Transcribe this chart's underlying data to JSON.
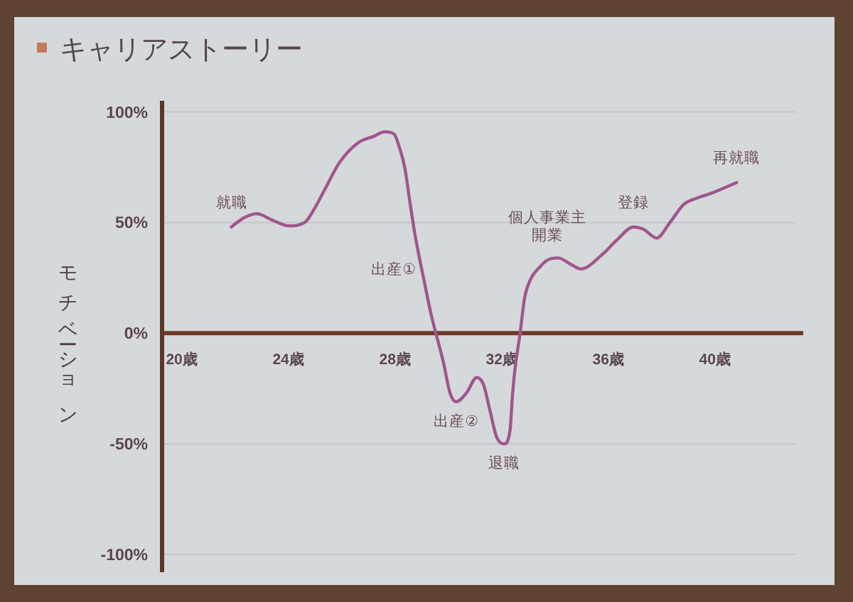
{
  "chart_data": {
    "type": "line",
    "title": "キャリアストーリー",
    "ylabel": "モチベーション",
    "xlim": [
      19.25,
      43.3
    ],
    "xticks": [
      {
        "value": 20,
        "label": "20歳"
      },
      {
        "value": 24,
        "label": "24歳"
      },
      {
        "value": 28,
        "label": "28歳"
      },
      {
        "value": 32,
        "label": "32歳"
      },
      {
        "value": 36,
        "label": "36歳"
      },
      {
        "value": 40,
        "label": "40歳"
      }
    ],
    "ylim": [
      -108,
      105
    ],
    "yticks": [
      {
        "value": -100,
        "label": "-100%"
      },
      {
        "value": -50,
        "label": "-50%"
      },
      {
        "value": 0,
        "label": "0%"
      },
      {
        "value": 50,
        "label": "50%"
      },
      {
        "value": 100,
        "label": "100%"
      }
    ],
    "grid": "y",
    "color": "#a0568c",
    "x": [
      21.85,
      22.3,
      22.8,
      23.4,
      24.0,
      24.6,
      25.0,
      25.4,
      25.9,
      26.6,
      27.2,
      27.6,
      27.95,
      28.15,
      28.35,
      28.55,
      28.73,
      29.09,
      29.35,
      29.52,
      29.8,
      30.05,
      30.28,
      30.67,
      31.05,
      31.3,
      31.55,
      31.8,
      32.08,
      32.3,
      32.4,
      32.5,
      32.68,
      32.85,
      33.1,
      33.35,
      33.7,
      34.1,
      34.6,
      34.95,
      35.8,
      36.3,
      36.93,
      37.3,
      37.8,
      38.3,
      38.8,
      39.3,
      39.8,
      40.8
    ],
    "values": [
      48,
      52,
      54,
      51,
      48.5,
      50,
      57,
      66,
      77,
      86,
      89,
      91,
      90,
      84,
      75,
      59,
      45,
      23,
      8,
      0,
      -13,
      -27,
      -31,
      -27,
      -20,
      -23,
      -35,
      -47,
      -50,
      -44,
      -27,
      -15,
      0,
      16,
      25,
      29,
      33,
      34,
      31,
      29,
      36,
      42,
      48,
      47,
      43,
      50,
      58,
      61,
      63,
      68
    ],
    "annotations": [
      {
        "text": "就職",
        "x": 21.85,
        "y": 48
      },
      {
        "text": "出産①",
        "x": 29.09,
        "y": 23
      },
      {
        "text": "出産②",
        "x": 30.28,
        "y": -31
      },
      {
        "text": "退職",
        "x": 32.08,
        "y": -50
      },
      {
        "text": "個人事業主開業",
        "x": 33.7,
        "y": 33
      },
      {
        "text": "登録",
        "x": 36.93,
        "y": 48
      },
      {
        "text": "再就職",
        "x": 40.8,
        "y": 68
      }
    ]
  }
}
